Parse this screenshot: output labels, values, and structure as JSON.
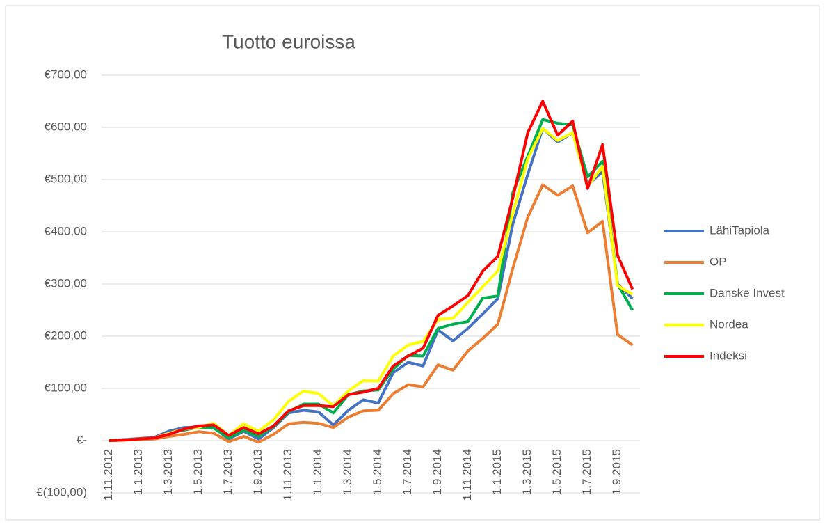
{
  "chart_data": {
    "type": "line",
    "title": "Tuotto euroissa",
    "categories": [
      "1.11.2012",
      null,
      "1.1.2013",
      null,
      "1.3.2013",
      null,
      "1.5.2013",
      null,
      "1.7.2013",
      null,
      "1.9.2013",
      null,
      "1.11.2013",
      null,
      "1.1.2014",
      null,
      "1.3.2014",
      null,
      "1.5.2014",
      null,
      "1.7.2014",
      null,
      "1.9.2014",
      null,
      "1.11.2014",
      null,
      "1.1.2015",
      null,
      "1.3.2015",
      null,
      "1.5.2015",
      null,
      "1.7.2015",
      null,
      "1.9.2015",
      null
    ],
    "series": [
      {
        "name": "LähiTapiola",
        "color": "#4472c4",
        "values": [
          0,
          2,
          4,
          6,
          18,
          25,
          26,
          25,
          3,
          18,
          3,
          25,
          53,
          58,
          55,
          30,
          58,
          78,
          72,
          130,
          150,
          143,
          212,
          191,
          215,
          243,
          272,
          415,
          510,
          598,
          572,
          590,
          490,
          515,
          300,
          272
        ]
      },
      {
        "name": "OP",
        "color": "#ed7d31",
        "values": [
          0,
          1,
          2,
          3,
          8,
          12,
          17,
          14,
          -2,
          8,
          -3,
          12,
          32,
          35,
          33,
          25,
          45,
          57,
          58,
          90,
          107,
          103,
          145,
          135,
          172,
          196,
          223,
          330,
          428,
          490,
          470,
          488,
          398,
          420,
          203,
          183
        ]
      },
      {
        "name": "Danske Invest",
        "color": "#00b050",
        "values": [
          0,
          1,
          3,
          5,
          14,
          20,
          26,
          24,
          5,
          20,
          8,
          27,
          55,
          70,
          70,
          53,
          88,
          95,
          97,
          137,
          163,
          162,
          215,
          223,
          228,
          273,
          277,
          475,
          545,
          615,
          608,
          605,
          505,
          535,
          300,
          250
        ]
      },
      {
        "name": "Nordea",
        "color": "#ffff00",
        "values": [
          0,
          1,
          3,
          5,
          14,
          22,
          26,
          33,
          10,
          32,
          18,
          40,
          75,
          95,
          90,
          67,
          95,
          115,
          114,
          162,
          183,
          190,
          232,
          234,
          265,
          295,
          325,
          435,
          540,
          598,
          575,
          590,
          487,
          525,
          297,
          280
        ]
      },
      {
        "name": "Indeksi",
        "color": "#ff0000",
        "values": [
          0,
          1,
          3,
          5,
          12,
          22,
          28,
          30,
          10,
          25,
          13,
          28,
          57,
          67,
          67,
          65,
          88,
          93,
          100,
          143,
          162,
          177,
          240,
          258,
          278,
          325,
          353,
          465,
          590,
          650,
          585,
          612,
          483,
          567,
          355,
          290
        ]
      }
    ],
    "ylim": [
      -100,
      700
    ],
    "yticks": [
      {
        "value": -100,
        "label": "€(100,00)"
      },
      {
        "value": 0,
        "label": "€-"
      },
      {
        "value": 100,
        "label": "€100,00"
      },
      {
        "value": 200,
        "label": "€200,00"
      },
      {
        "value": 300,
        "label": "€300,00"
      },
      {
        "value": 400,
        "label": "€400,00"
      },
      {
        "value": 500,
        "label": "€500,00"
      },
      {
        "value": 600,
        "label": "€600,00"
      },
      {
        "value": 700,
        "label": "€700,00"
      }
    ],
    "grid": true,
    "legend": "right"
  }
}
